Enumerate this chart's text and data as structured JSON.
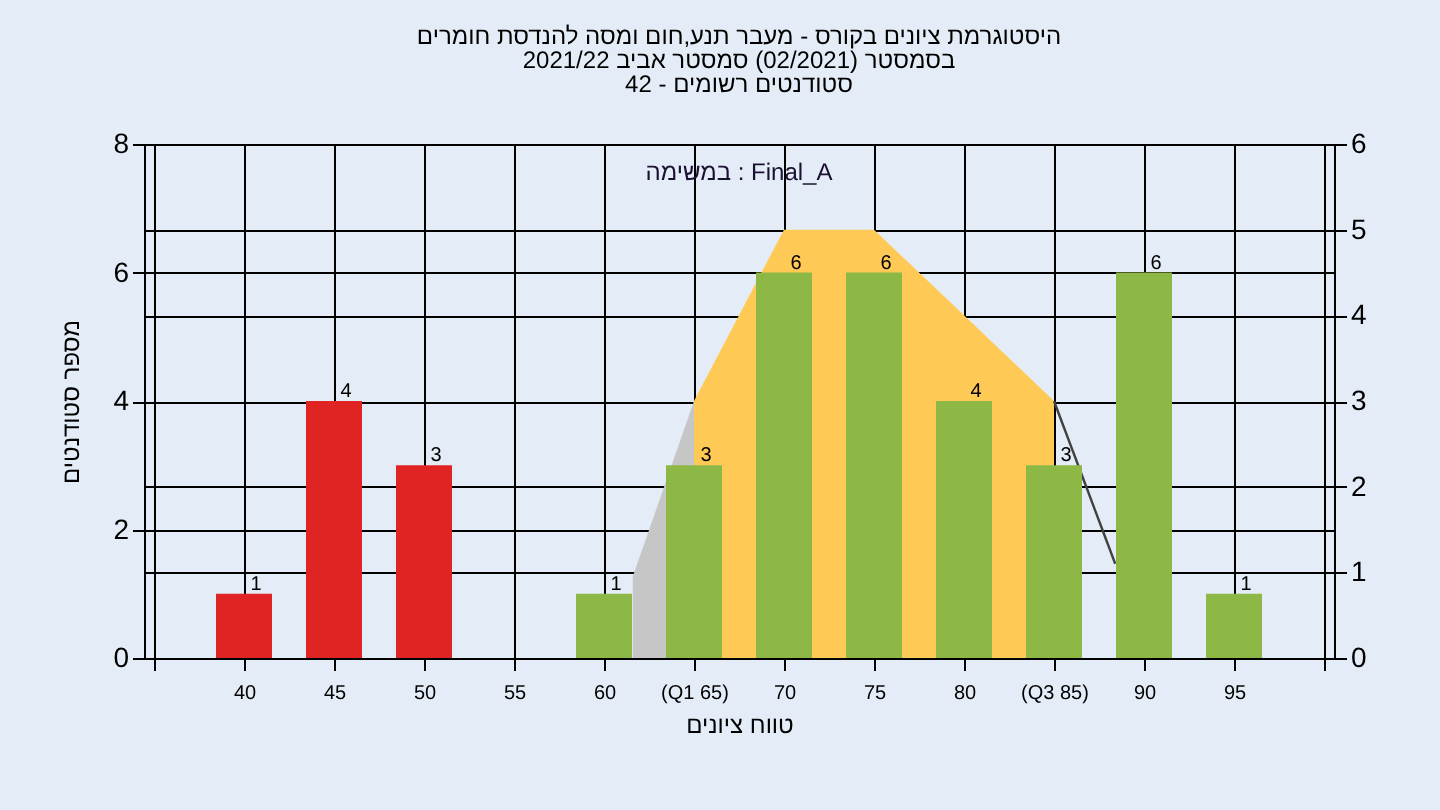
{
  "chart_data": {
    "type": "bar",
    "title": "היסטוגרמת ציונים בקורס - מעבר תנע,חום ומסה להנדסת חומרים",
    "subtitle": "בסמסטר  (02/2021)  סמסטר אביב 2021/22",
    "xlabel": "טווח ציונים",
    "ylabel": "מספר סטודנטים",
    "annotations": [
      "סטודנטים רשומים - 42",
      "במשימה : Final_A"
    ],
    "x": [
      40,
      45,
      50,
      55,
      60,
      65,
      70,
      75,
      80,
      85,
      90,
      95
    ],
    "xlim": [
      35,
      100
    ],
    "xticks": [
      {
        "value": 35,
        "label": null
      },
      40,
      45,
      50,
      55,
      60,
      {
        "value": 65,
        "label": "(Q1 65)"
      },
      70,
      75,
      80,
      {
        "value": 85,
        "label": "(Q3 85)"
      },
      90,
      95,
      {
        "value": 100,
        "label": null
      }
    ],
    "ylim": [
      0,
      8
    ],
    "yticks": [
      0,
      2,
      4,
      6,
      8
    ],
    "y2lim": [
      0,
      6
    ],
    "y2ticks": [
      0,
      1,
      2,
      3,
      4,
      5,
      6
    ],
    "grid": true,
    "series": [
      {
        "type": "area",
        "axis": "y2",
        "color": "#c6c6c6",
        "x": [
          61.6,
          65
        ],
        "values": [
          0.95,
          3
        ]
      },
      {
        "type": "area",
        "axis": "y2",
        "color": "#ffc955",
        "x": [
          65,
          70,
          75,
          80,
          85
        ],
        "values": [
          3,
          5,
          5,
          4,
          3
        ]
      },
      {
        "type": "line",
        "axis": "y2",
        "color": "#404040",
        "x": [
          85,
          88.4
        ],
        "values": [
          3,
          1.1
        ]
      },
      {
        "values": [
          1,
          4,
          3,
          0,
          1,
          3,
          6,
          6,
          4,
          3,
          6,
          1
        ],
        "value_labels": [
          "1",
          "4",
          "3",
          null,
          "1",
          "3",
          "6",
          "6",
          "4",
          "3",
          "6",
          "1"
        ],
        "colors": [
          "#e02424",
          "#e02424",
          "#e02424",
          "#8db845",
          "#8db845",
          "#8db845",
          "#8db845",
          "#8db845",
          "#8db845",
          "#8db845",
          "#8db845",
          "#8db845"
        ]
      }
    ]
  }
}
